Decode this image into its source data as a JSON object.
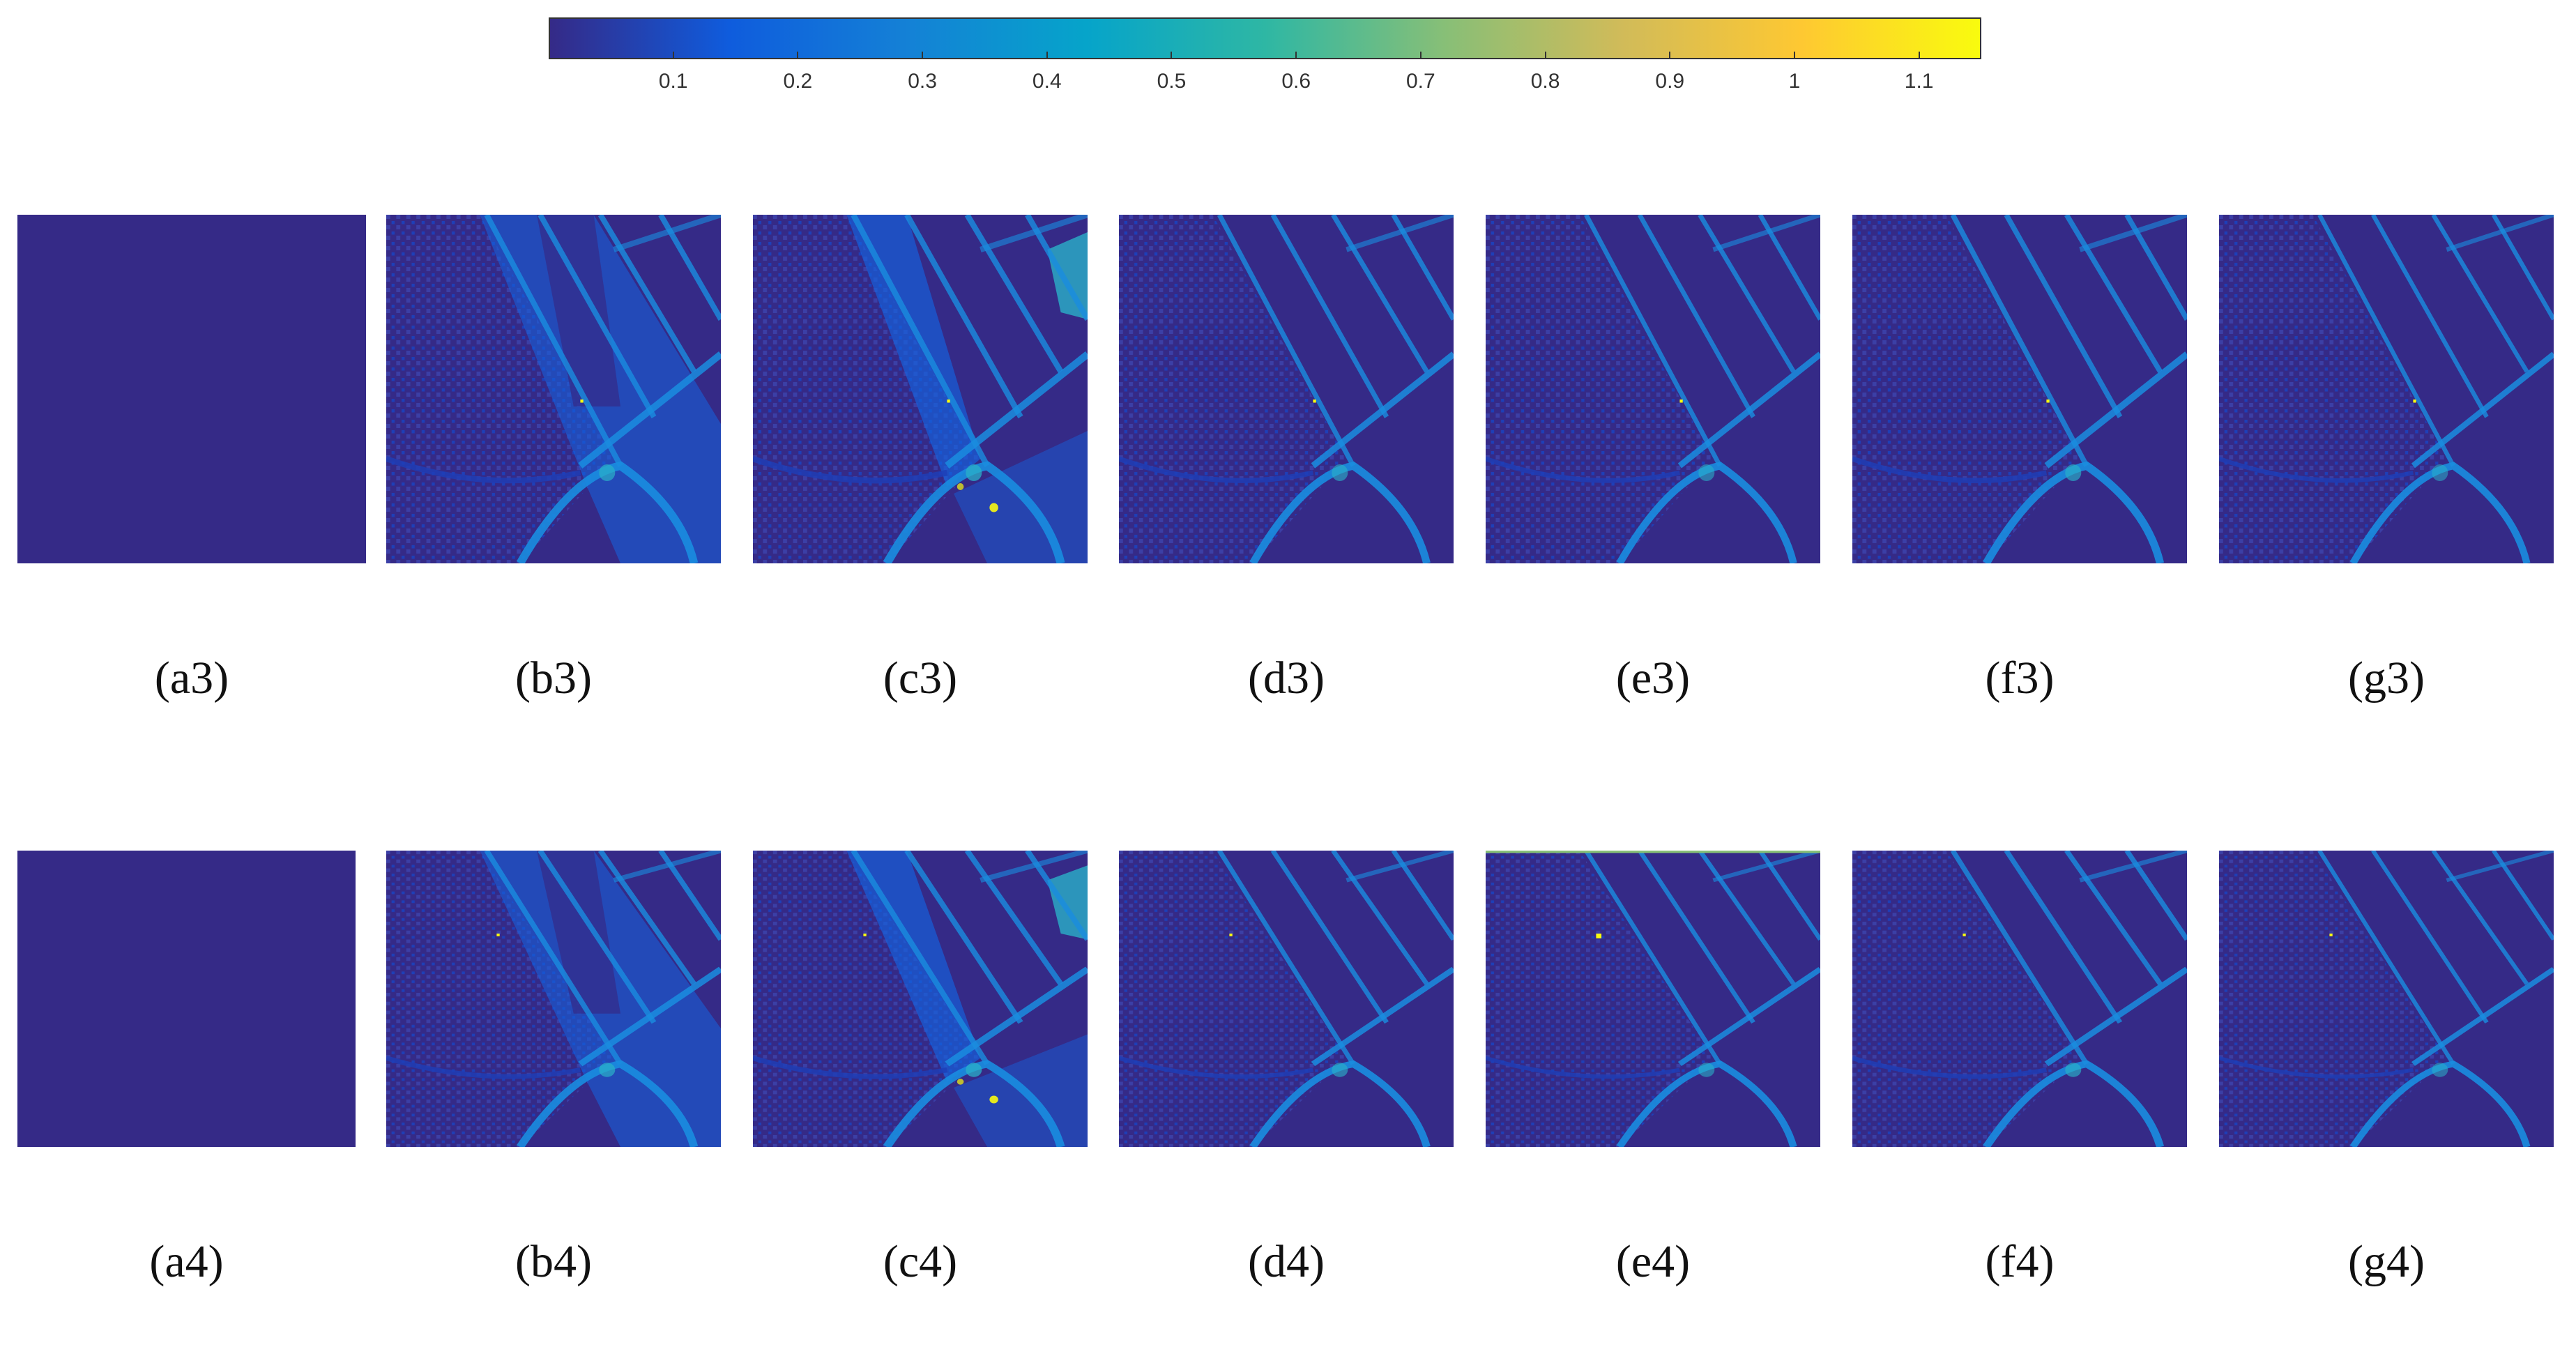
{
  "colorbar": {
    "ticks": [
      "0.1",
      "0.2",
      "0.3",
      "0.4",
      "0.5",
      "0.6",
      "0.7",
      "0.8",
      "0.9",
      "1",
      "1.1"
    ],
    "tick_values": [
      0.1,
      0.2,
      0.3,
      0.4,
      0.5,
      0.6,
      0.7,
      0.8,
      0.9,
      1.0,
      1.1
    ],
    "range": [
      0.0,
      1.15
    ],
    "colormap": [
      "#352a87",
      "#0f5cdd",
      "#1481d6",
      "#06a4ca",
      "#2eb7a4",
      "#87bf77",
      "#d1bb59",
      "#fec832",
      "#f9fb0e"
    ]
  },
  "rows": [
    {
      "id": "row3",
      "panels": [
        {
          "label": "(a3)",
          "variant": "blank"
        },
        {
          "label": "(b3)",
          "variant": "b"
        },
        {
          "label": "(c3)",
          "variant": "c"
        },
        {
          "label": "(d3)",
          "variant": "d"
        },
        {
          "label": "(e3)",
          "variant": "e"
        },
        {
          "label": "(f3)",
          "variant": "f"
        },
        {
          "label": "(g3)",
          "variant": "g"
        }
      ]
    },
    {
      "id": "row4",
      "panels": [
        {
          "label": "(a4)",
          "variant": "blank"
        },
        {
          "label": "(b4)",
          "variant": "b"
        },
        {
          "label": "(c4)",
          "variant": "c"
        },
        {
          "label": "(d4)",
          "variant": "d"
        },
        {
          "label": "(e4)",
          "variant": "e"
        },
        {
          "label": "(f4)",
          "variant": "f"
        },
        {
          "label": "(g4)",
          "variant": "g"
        }
      ]
    }
  ]
}
